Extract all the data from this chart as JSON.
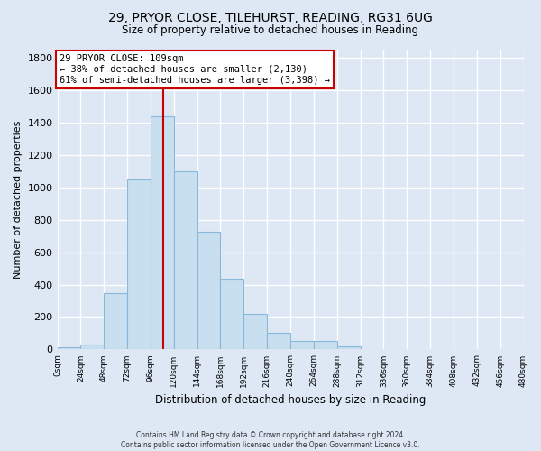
{
  "title_line1": "29, PRYOR CLOSE, TILEHURST, READING, RG31 6UG",
  "title_line2": "Size of property relative to detached houses in Reading",
  "xlabel": "Distribution of detached houses by size in Reading",
  "ylabel": "Number of detached properties",
  "bin_edges": [
    0,
    24,
    48,
    72,
    96,
    120,
    144,
    168,
    192,
    216,
    240,
    264,
    288,
    312,
    336,
    360,
    384,
    408,
    432,
    456,
    480
  ],
  "bar_heights": [
    15,
    30,
    350,
    1050,
    1440,
    1100,
    725,
    435,
    220,
    105,
    55,
    50,
    20,
    5,
    2,
    1,
    1,
    0,
    0,
    0
  ],
  "bar_color": "#c8dff0",
  "bar_edge_color": "#89b8d8",
  "property_line_x": 109,
  "property_line_color": "#cc0000",
  "annotation_text": "29 PRYOR CLOSE: 109sqm\n← 38% of detached houses are smaller (2,130)\n61% of semi-detached houses are larger (3,398) →",
  "annotation_box_color": "#ffffff",
  "annotation_box_edge": "#cc0000",
  "tick_labels": [
    "0sqm",
    "24sqm",
    "48sqm",
    "72sqm",
    "96sqm",
    "120sqm",
    "144sqm",
    "168sqm",
    "192sqm",
    "216sqm",
    "240sqm",
    "264sqm",
    "288sqm",
    "312sqm",
    "336sqm",
    "360sqm",
    "384sqm",
    "408sqm",
    "432sqm",
    "456sqm",
    "480sqm"
  ],
  "ylim": [
    0,
    1850
  ],
  "yticks": [
    0,
    200,
    400,
    600,
    800,
    1000,
    1200,
    1400,
    1600,
    1800
  ],
  "footnote": "Contains HM Land Registry data © Crown copyright and database right 2024.\nContains public sector information licensed under the Open Government Licence v3.0.",
  "background_color": "#dde8f4",
  "grid_color": "#ffffff"
}
